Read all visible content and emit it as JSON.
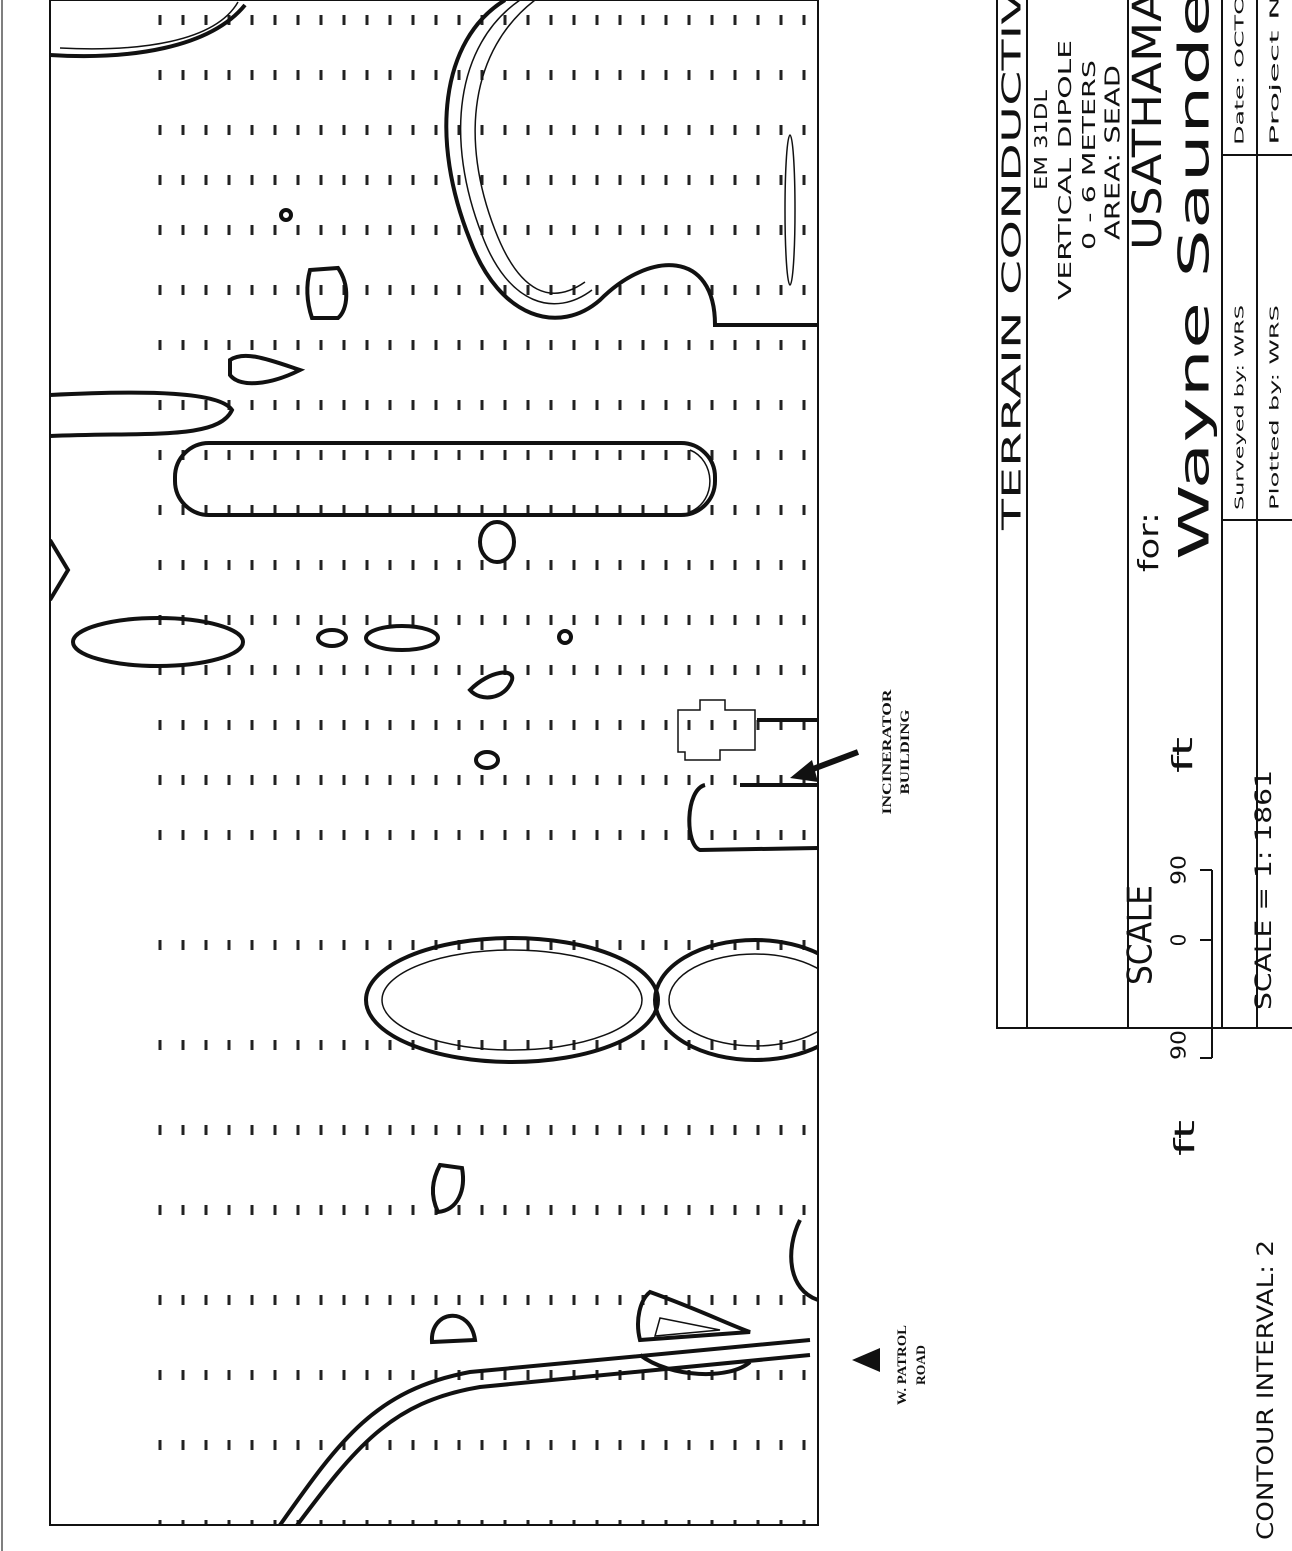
{
  "title_block": {
    "title": "TERRAIN CONDUCTIV",
    "instrument": "EM 31DL",
    "orientation": "VERTICAL DIPOLE",
    "depth": "0 - 6 METERS",
    "area": "AREA: SEAD",
    "for_label": "for:",
    "client": "USATHAMA",
    "company": "Wayne Saunde",
    "surveyed_by": "Surveyed by: WRS",
    "date": "Date: OCTO",
    "plotted_by": "Plotted by: WRS",
    "project": "Project N"
  },
  "scale_ratio": "SCALE = 1: 1861",
  "scale_bar": {
    "title": "SCALE",
    "unit_right": "ft",
    "unit_left": "ft",
    "labels": [
      "90",
      "0",
      "90"
    ]
  },
  "annotations": {
    "incinerator": [
      "INCINERATOR",
      "BUILDING"
    ],
    "road": [
      "W. PATROL",
      "ROAD"
    ]
  },
  "contour_interval": "CONTOUR INTERVAL: 2"
}
